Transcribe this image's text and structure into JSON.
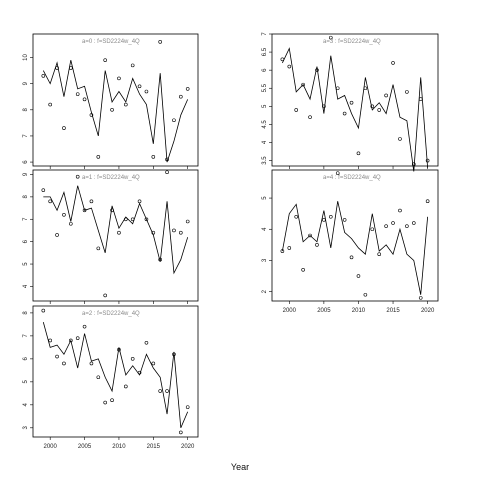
{
  "chart_data": {
    "xlabel": "Year",
    "x_ticks": [
      2000,
      2005,
      2010,
      2015,
      2020
    ],
    "panels": [
      {
        "type": "line",
        "title": "a=0 : f=SD2224w_4Q",
        "xlim": [
          1997.5,
          2021.5
        ],
        "ylim": [
          5.85,
          10.9
        ],
        "y_ticks": [
          6,
          7,
          8,
          9,
          10
        ],
        "x": [
          1999,
          2000,
          2001,
          2002,
          2003,
          2004,
          2005,
          2006,
          2007,
          2008,
          2009,
          2010,
          2011,
          2012,
          2013,
          2014,
          2015,
          2016,
          2017,
          2018,
          2019,
          2020
        ],
        "line": [
          9.5,
          9.0,
          9.8,
          8.5,
          9.9,
          8.8,
          8.9,
          7.9,
          7.0,
          9.5,
          8.3,
          8.7,
          8.3,
          9.2,
          8.6,
          8.2,
          6.7,
          9.4,
          6.0,
          6.8,
          7.8,
          8.4
        ],
        "points": [
          9.3,
          8.2,
          9.6,
          7.3,
          9.6,
          8.6,
          8.4,
          7.8,
          6.2,
          9.9,
          8.0,
          9.2,
          8.2,
          9.7,
          8.9,
          8.7,
          6.2,
          10.6,
          6.1,
          7.6,
          8.5,
          8.8
        ]
      },
      {
        "type": "line",
        "title": "a=1 : f=SD2224w_4Q",
        "xlim": [
          1997.5,
          2021.5
        ],
        "ylim": [
          3.35,
          9.2
        ],
        "y_ticks": [
          4,
          5,
          6,
          7,
          8,
          9
        ],
        "x": [
          1999,
          2000,
          2001,
          2002,
          2003,
          2004,
          2005,
          2006,
          2007,
          2008,
          2009,
          2010,
          2011,
          2012,
          2013,
          2014,
          2015,
          2016,
          2017,
          2018,
          2019,
          2020
        ],
        "line": [
          8.0,
          8.0,
          7.4,
          8.2,
          6.9,
          8.5,
          7.4,
          7.5,
          6.5,
          5.5,
          7.6,
          6.6,
          7.1,
          6.8,
          7.7,
          7.0,
          6.3,
          5.1,
          7.8,
          4.6,
          5.2,
          6.2
        ],
        "points": [
          8.3,
          7.8,
          6.3,
          7.2,
          6.8,
          8.9,
          7.4,
          7.8,
          5.7,
          3.6,
          7.4,
          6.4,
          7.0,
          7.0,
          7.8,
          7.0,
          6.4,
          5.2,
          9.1,
          6.5,
          6.4,
          6.9
        ]
      },
      {
        "type": "line",
        "title": "a=2 : f=SD2224w_4Q",
        "xlim": [
          1997.5,
          2021.5
        ],
        "ylim": [
          2.6,
          8.3
        ],
        "y_ticks": [
          3,
          4,
          5,
          6,
          7,
          8
        ],
        "x": [
          1999,
          2000,
          2001,
          2002,
          2003,
          2004,
          2005,
          2006,
          2007,
          2008,
          2009,
          2010,
          2011,
          2012,
          2013,
          2014,
          2015,
          2016,
          2017,
          2018,
          2019,
          2020
        ],
        "line": [
          7.6,
          6.5,
          6.6,
          6.2,
          6.8,
          5.6,
          7.1,
          5.9,
          6.0,
          5.2,
          4.6,
          6.5,
          5.3,
          5.7,
          5.3,
          6.2,
          5.6,
          5.2,
          3.6,
          6.3,
          3.0,
          3.7
        ],
        "points": [
          8.1,
          6.8,
          6.1,
          5.8,
          6.8,
          6.9,
          7.4,
          5.8,
          5.2,
          4.1,
          4.2,
          6.4,
          4.8,
          6.0,
          5.4,
          6.7,
          5.8,
          4.6,
          4.6,
          6.2,
          2.8,
          3.9
        ]
      },
      {
        "type": "line",
        "title": "a=3 : f=SD2224w_4Q",
        "xlim": [
          1997.5,
          2021.5
        ],
        "ylim": [
          3.35,
          7.0
        ],
        "y_ticks": [
          3.5,
          4.0,
          4.5,
          5.0,
          5.5,
          6.0,
          6.5,
          7.0
        ],
        "x": [
          1999,
          2000,
          2001,
          2002,
          2003,
          2004,
          2005,
          2006,
          2007,
          2008,
          2009,
          2010,
          2011,
          2012,
          2013,
          2014,
          2015,
          2016,
          2017,
          2018,
          2019,
          2020
        ],
        "line": [
          6.2,
          6.6,
          5.4,
          5.6,
          5.2,
          6.1,
          4.8,
          6.4,
          5.2,
          5.3,
          4.8,
          4.4,
          5.8,
          4.9,
          5.1,
          4.8,
          5.6,
          4.7,
          4.6,
          3.2,
          5.8,
          3.3
        ],
        "points": [
          6.3,
          6.1,
          4.9,
          5.6,
          4.7,
          6.0,
          5.0,
          6.9,
          5.5,
          4.8,
          5.1,
          3.7,
          5.5,
          5.0,
          4.9,
          5.3,
          6.2,
          4.1,
          5.4,
          3.4,
          5.2,
          3.5
        ]
      },
      {
        "type": "line",
        "title": "a=4 : f=SD2224w_4Q",
        "xlim": [
          1997.5,
          2021.5
        ],
        "ylim": [
          1.7,
          5.9
        ],
        "y_ticks": [
          2,
          3,
          4,
          5
        ],
        "x": [
          1999,
          2000,
          2001,
          2002,
          2003,
          2004,
          2005,
          2006,
          2007,
          2008,
          2009,
          2010,
          2011,
          2012,
          2013,
          2014,
          2015,
          2016,
          2017,
          2018,
          2019,
          2020
        ],
        "line": [
          3.3,
          4.5,
          4.8,
          3.6,
          3.8,
          3.6,
          4.6,
          3.4,
          4.9,
          3.9,
          3.7,
          3.4,
          3.2,
          4.5,
          3.3,
          3.5,
          3.2,
          4.0,
          3.2,
          3.0,
          1.9,
          4.4
        ],
        "points": [
          3.3,
          3.4,
          4.4,
          2.7,
          3.8,
          3.5,
          4.3,
          4.4,
          5.8,
          4.3,
          3.1,
          2.5,
          1.9,
          4.0,
          3.2,
          4.1,
          4.2,
          4.6,
          4.1,
          4.2,
          1.8,
          4.9
        ]
      }
    ]
  }
}
